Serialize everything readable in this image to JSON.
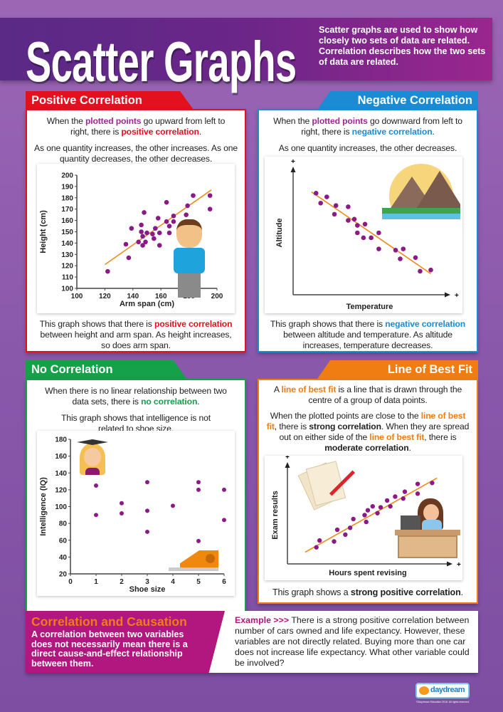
{
  "header": {
    "title": "Scatter Graphs",
    "intro": "Scatter graphs are used to show how closely two sets of data are related. Correlation describes how the two sets of data are related."
  },
  "colors": {
    "positive": "#e3101e",
    "negative": "#1b8bd3",
    "none": "#15a04a",
    "bestfit": "#f07d12",
    "causation": "#b2167f",
    "points": "#8b1a86",
    "highlight": "#9b2a8f",
    "trend": "#f08a1c"
  },
  "positive": {
    "title": "Positive Correlation",
    "p1": {
      "a": "When the ",
      "b": "plotted points",
      "c": " go upward from left to right, there is ",
      "d": "positive correlation",
      "e": "."
    },
    "p2": "As one quantity increases, the other increases. As one quantity decreases, the other decreases.",
    "p3": {
      "a": "This graph shows that there is ",
      "b": "positive correlation",
      "c": " between height and arm span. As height increases, so does arm span."
    }
  },
  "negative": {
    "title": "Negative Correlation",
    "p1": {
      "a": "When the ",
      "b": "plotted points",
      "c": " go downward from left to right, there is ",
      "d": "negative correlation",
      "e": "."
    },
    "p2": "As one quantity increases, the other decreases.",
    "p3": {
      "a": "This graph shows that there is ",
      "b": "negative correlation",
      "c": " between altitude and temperature. As altitude increases, temperature decreases."
    }
  },
  "none": {
    "title": "No Correlation",
    "p1": {
      "a": "When there is no linear relationship between two data sets, there is ",
      "b": "no correlation",
      "c": "."
    },
    "p2": "This graph shows that intelligence is not related to shoe size."
  },
  "bestfit": {
    "title": "Line of Best Fit",
    "p1": {
      "a": "A ",
      "b": "line of best fit",
      "c": " is a line that is drawn through the centre of a group of data points."
    },
    "p2": {
      "a": "When the plotted points are close to the ",
      "b": "line of best fit",
      "c": ", there is ",
      "d": "strong correlation",
      "e": ". When they are spread out on either side of the ",
      "f": "line of best fit",
      "g": ", there is ",
      "h": "moderate correlation",
      "i": "."
    },
    "p3": {
      "a": "This graph shows a ",
      "b": "strong positive correlation",
      "c": "."
    }
  },
  "causation": {
    "title": "Correlation and Causation",
    "body": "A correlation between two variables does not necessarily mean there is a direct cause-and-effect relationship between them.",
    "example_label": "Example >>>",
    "example": " There is a strong positive correlation between number of cars owned and life expectancy. However, these variables are not directly related. Buying more than one car does not increase life expectancy. What other variable could be involved?"
  },
  "logo": {
    "text": "daydreamEDUCATION",
    "copyright": "©Daydream Education 2016. All rights reserved."
  },
  "chart_data": [
    {
      "id": "positive",
      "type": "scatter",
      "xlabel": "Arm span (cm)",
      "ylabel": "Height (cm)",
      "xlim": [
        100,
        200
      ],
      "ylim": [
        100,
        200
      ],
      "xticks": [
        100,
        120,
        140,
        160,
        180,
        200
      ],
      "yticks": [
        100,
        110,
        120,
        130,
        140,
        150,
        160,
        170,
        180,
        190,
        200
      ],
      "points": [
        [
          122,
          115
        ],
        [
          135,
          139
        ],
        [
          137,
          127
        ],
        [
          139,
          153
        ],
        [
          144,
          141
        ],
        [
          146,
          156
        ],
        [
          146,
          150
        ],
        [
          147,
          146
        ],
        [
          147,
          138
        ],
        [
          148,
          167
        ],
        [
          149,
          141
        ],
        [
          150,
          149
        ],
        [
          154,
          148
        ],
        [
          155,
          144
        ],
        [
          156,
          153
        ],
        [
          158,
          162
        ],
        [
          159,
          149
        ],
        [
          159,
          138
        ],
        [
          164,
          176
        ],
        [
          164,
          159
        ],
        [
          166,
          149
        ],
        [
          166,
          155
        ],
        [
          169,
          164
        ],
        [
          169,
          159
        ],
        [
          178,
          165
        ],
        [
          179,
          173
        ],
        [
          183,
          182
        ],
        [
          195,
          182
        ],
        [
          195,
          170
        ]
      ],
      "trendline": [
        [
          120,
          121
        ],
        [
          196,
          187
        ]
      ]
    },
    {
      "id": "negative",
      "type": "scatter",
      "xlabel": "Temperature",
      "ylabel": "Altitude",
      "axis_end_marks": "+",
      "xlim": [
        0,
        10
      ],
      "ylim": [
        0,
        10
      ],
      "points": [
        [
          1.5,
          8.2
        ],
        [
          1.8,
          7.4
        ],
        [
          2.2,
          7.9
        ],
        [
          2.8,
          7.2
        ],
        [
          2.7,
          6.5
        ],
        [
          3.6,
          7.1
        ],
        [
          3.6,
          6.0
        ],
        [
          4.0,
          6.1
        ],
        [
          4.2,
          5.6
        ],
        [
          4.7,
          5.7
        ],
        [
          4.2,
          5.0
        ],
        [
          4.6,
          4.6
        ],
        [
          5.1,
          4.6
        ],
        [
          5.6,
          5.0
        ],
        [
          5.6,
          3.7
        ],
        [
          6.7,
          3.6
        ],
        [
          7.2,
          3.7
        ],
        [
          7.0,
          2.9
        ],
        [
          8.0,
          3.0
        ],
        [
          8.3,
          1.9
        ],
        [
          9.0,
          2.0
        ]
      ],
      "trendline": [
        [
          1.2,
          8.3
        ],
        [
          9.0,
          1.7
        ]
      ]
    },
    {
      "id": "none",
      "type": "scatter",
      "xlabel": "Shoe size",
      "ylabel": "Intelligence (IQ)",
      "xlim": [
        0,
        6
      ],
      "ylim": [
        20,
        180
      ],
      "xticks": [
        0,
        1,
        2,
        3,
        4,
        5,
        6
      ],
      "yticks": [
        20,
        40,
        60,
        80,
        100,
        120,
        140,
        160,
        180
      ],
      "points": [
        [
          1,
          125
        ],
        [
          1,
          90
        ],
        [
          2,
          104
        ],
        [
          2,
          92
        ],
        [
          3,
          129
        ],
        [
          3,
          95
        ],
        [
          3,
          70
        ],
        [
          4,
          101
        ],
        [
          5,
          129
        ],
        [
          5,
          120
        ],
        [
          5,
          59
        ],
        [
          6,
          120
        ],
        [
          6,
          84
        ]
      ]
    },
    {
      "id": "bestfit",
      "type": "scatter",
      "xlabel": "Hours spent revising",
      "ylabel": "Exam results",
      "axis_end_marks": "+",
      "xlim": [
        0,
        10
      ],
      "ylim": [
        0,
        10
      ],
      "points": [
        [
          1.8,
          1.7
        ],
        [
          2.0,
          2.4
        ],
        [
          2.9,
          2.3
        ],
        [
          3.1,
          3.5
        ],
        [
          3.6,
          3.0
        ],
        [
          3.9,
          3.7
        ],
        [
          4.1,
          4.6
        ],
        [
          4.8,
          5.0
        ],
        [
          4.9,
          4.3
        ],
        [
          5.0,
          5.5
        ],
        [
          5.3,
          5.9
        ],
        [
          5.6,
          5.2
        ],
        [
          5.8,
          5.8
        ],
        [
          6.2,
          6.5
        ],
        [
          6.4,
          5.9
        ],
        [
          6.7,
          6.9
        ],
        [
          7.2,
          6.7
        ],
        [
          7.3,
          7.4
        ],
        [
          8.1,
          7.2
        ],
        [
          8.1,
          8.2
        ],
        [
          9.0,
          8.3
        ]
      ],
      "trendline": [
        [
          1.1,
          1.2
        ],
        [
          9.3,
          8.8
        ]
      ]
    }
  ]
}
